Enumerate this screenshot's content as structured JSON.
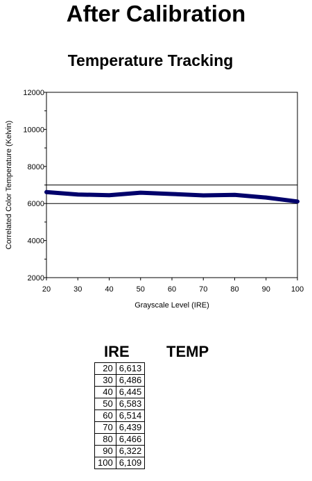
{
  "page_title": "After Calibration",
  "chart_data": {
    "type": "line",
    "title": "Temperature Tracking",
    "xlabel": "Grayscale Level (IRE)",
    "ylabel": "Correlated Color Temperature (Kelvin)",
    "x": [
      20,
      30,
      40,
      50,
      60,
      70,
      80,
      90,
      100
    ],
    "series": [
      {
        "values": [
          6613,
          6486,
          6445,
          6583,
          6514,
          6439,
          6466,
          6322,
          6109
        ]
      }
    ],
    "xlim": [
      20,
      100
    ],
    "ylim": [
      2000,
      12000
    ],
    "x_ticks": [
      "20",
      "30",
      "40",
      "50",
      "60",
      "70",
      "80",
      "90",
      "100"
    ],
    "y_ticks": [
      "2000",
      "4000",
      "6000",
      "8000",
      "10000",
      "12000"
    ],
    "reference_lines": [
      6000,
      7000
    ],
    "grid": false,
    "line_color": "#00006b"
  },
  "table": {
    "headers": [
      "IRE",
      "TEMP"
    ],
    "rows": [
      [
        "20",
        "6,613"
      ],
      [
        "30",
        "6,486"
      ],
      [
        "40",
        "6,445"
      ],
      [
        "50",
        "6,583"
      ],
      [
        "60",
        "6,514"
      ],
      [
        "70",
        "6,439"
      ],
      [
        "80",
        "6,466"
      ],
      [
        "90",
        "6,322"
      ],
      [
        "100",
        "6,109"
      ]
    ]
  }
}
